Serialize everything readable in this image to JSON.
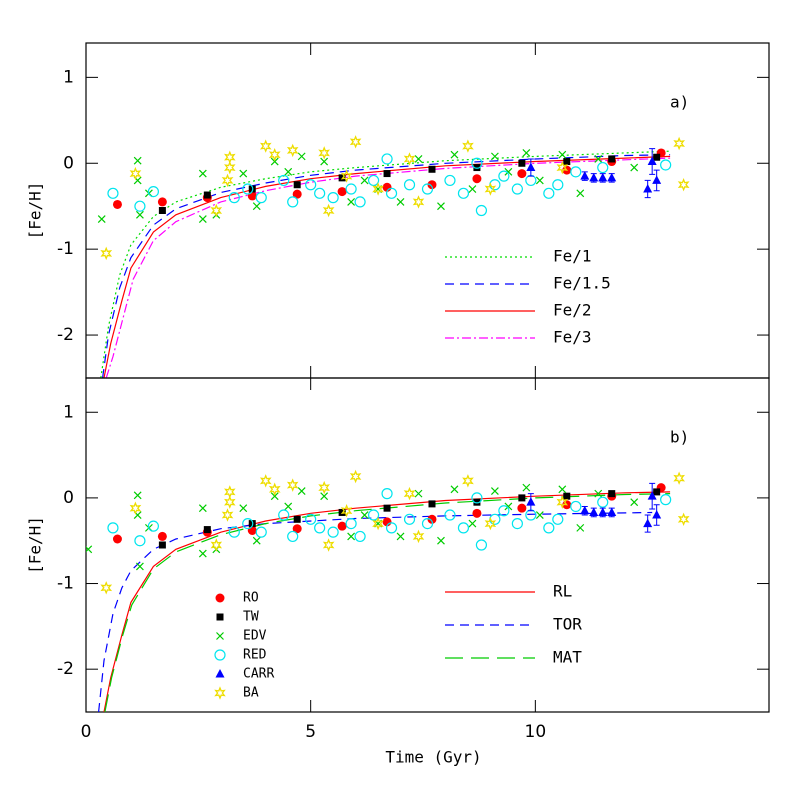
{
  "chart_data": [
    {
      "type": "scatter",
      "label": "a)",
      "ylabel": "[Fe/H]",
      "xlim": [
        0,
        15.2
      ],
      "ylim": [
        -2.5,
        1.4
      ],
      "xticks": [
        0,
        5,
        10
      ],
      "yticks": [
        1,
        0,
        -1,
        -2
      ],
      "series": [
        {
          "name": "Fe/1",
          "color": "#00dd00",
          "dash": "dotted",
          "x": [
            0.33,
            0.5,
            0.75,
            1,
            1.5,
            2,
            3,
            4,
            5,
            6,
            8,
            10,
            12,
            13
          ],
          "values": [
            -2.5,
            -1.9,
            -1.3,
            -0.95,
            -0.62,
            -0.45,
            -0.28,
            -0.18,
            -0.1,
            -0.05,
            0.03,
            0.08,
            0.12,
            0.14
          ]
        },
        {
          "name": "Fe/1.5",
          "color": "#0000ff",
          "dash": "dashed",
          "x": [
            0.37,
            0.5,
            0.75,
            1,
            1.5,
            2,
            3,
            4,
            5,
            6,
            8,
            10,
            12,
            13
          ],
          "values": [
            -2.5,
            -2.0,
            -1.45,
            -1.1,
            -0.72,
            -0.53,
            -0.34,
            -0.23,
            -0.14,
            -0.08,
            0,
            0.05,
            0.09,
            0.1
          ]
        },
        {
          "name": "Fe/2",
          "color": "#ff0000",
          "dash": "solid",
          "x": [
            0.4,
            0.55,
            0.8,
            1,
            1.5,
            2,
            3,
            4,
            5,
            6,
            8,
            10,
            12,
            13
          ],
          "values": [
            -2.5,
            -2.1,
            -1.6,
            -1.22,
            -0.8,
            -0.6,
            -0.4,
            -0.27,
            -0.18,
            -0.12,
            -0.03,
            0.02,
            0.06,
            0.08
          ]
        },
        {
          "name": "Fe/3",
          "color": "#ff00ff",
          "dash": "dashdot",
          "x": [
            0.45,
            0.6,
            0.85,
            1.05,
            1.5,
            2,
            3,
            4,
            5,
            6,
            8,
            10,
            12,
            13
          ],
          "values": [
            -2.5,
            -2.25,
            -1.75,
            -1.35,
            -0.9,
            -0.68,
            -0.45,
            -0.32,
            -0.22,
            -0.15,
            -0.06,
            0,
            0.04,
            0.06
          ]
        },
        {
          "color": "#ff0000",
          "marker": "dot",
          "x": [
            0.7,
            1.7,
            2.7,
            3.7,
            4.7,
            5.7,
            6.7,
            7.7,
            8.7,
            9.7,
            10.7,
            11.7,
            12.8
          ],
          "values": [
            -0.48,
            -0.45,
            -0.4,
            -0.38,
            -0.36,
            -0.33,
            -0.28,
            -0.25,
            -0.18,
            -0.12,
            -0.08,
            0.02,
            0.12
          ]
        },
        {
          "color": "#000000",
          "marker": "square",
          "x": [
            1.7,
            2.7,
            3.7,
            4.7,
            5.7,
            6.7,
            7.7,
            8.7,
            9.7,
            10.7,
            11.7,
            12.7
          ],
          "values": [
            -0.55,
            -0.37,
            -0.3,
            -0.25,
            -0.17,
            -0.12,
            -0.07,
            -0.05,
            0,
            0.02,
            0.05,
            0.07
          ]
        },
        {
          "color": "#00cc00",
          "marker": "cross",
          "x": [
            0.35,
            1.15,
            1.15,
            1.2,
            1.4,
            2.6,
            2.6,
            2.9,
            3.5,
            3.8,
            4.2,
            4.5,
            4.8,
            5.3,
            5.9,
            6.2,
            6.5,
            7,
            7.4,
            7.9,
            8.2,
            8.6,
            9.1,
            9.4,
            9.8,
            10.1,
            10.6,
            11,
            11.4,
            12.2
          ],
          "values": [
            -0.65,
            0.03,
            -0.2,
            -0.6,
            -0.35,
            -0.65,
            -0.12,
            -0.6,
            -0.12,
            -0.5,
            0.02,
            -0.1,
            0.08,
            0.02,
            -0.45,
            -0.2,
            -0.3,
            -0.45,
            0.05,
            -0.5,
            0.1,
            -0.3,
            0.08,
            -0.1,
            0.12,
            -0.2,
            0.1,
            -0.35,
            0.05,
            -0.05
          ]
        },
        {
          "color": "#00e5ee",
          "marker": "ring",
          "x": [
            0.6,
            1.2,
            1.5,
            3.3,
            3.6,
            3.9,
            4.4,
            4.6,
            5,
            5.2,
            5.5,
            5.9,
            6.1,
            6.4,
            6.7,
            6.8,
            7.2,
            7.6,
            8.1,
            8.4,
            8.7,
            8.8,
            9.1,
            9.3,
            9.6,
            9.9,
            10.3,
            10.5,
            10.9,
            11.5,
            12.9
          ],
          "values": [
            -0.35,
            -0.5,
            -0.33,
            -0.4,
            -0.3,
            -0.4,
            -0.2,
            -0.45,
            -0.25,
            -0.35,
            -0.4,
            -0.3,
            -0.45,
            -0.2,
            0.05,
            -0.35,
            -0.25,
            -0.3,
            -0.2,
            -0.35,
            0,
            -0.55,
            -0.25,
            -0.15,
            -0.3,
            -0.2,
            -0.35,
            -0.25,
            -0.1,
            -0.05,
            -0.02
          ]
        },
        {
          "color": "#0000ff",
          "marker": "triangle",
          "x": [
            9.9,
            11.1,
            11.3,
            11.5,
            11.7,
            12.5,
            12.7,
            12.6
          ],
          "values": [
            -0.05,
            -0.15,
            -0.17,
            -0.17,
            -0.17,
            -0.3,
            -0.2,
            0.02
          ],
          "errors": [
            0.1,
            0.05,
            0.05,
            0.05,
            0.05,
            0.1,
            0.12,
            0.15
          ]
        },
        {
          "color": "#eedd00",
          "marker": "star",
          "x": [
            0.45,
            1.1,
            2.9,
            3.15,
            3.2,
            3.2,
            4,
            4.2,
            4.6,
            5.3,
            5.8,
            6,
            5.4,
            6.5,
            7.2,
            7.4,
            8.5,
            9,
            10.6,
            13.3,
            13.2
          ],
          "values": [
            -1.05,
            -0.12,
            -0.55,
            -0.2,
            0.07,
            -0.05,
            0.2,
            0.1,
            0.15,
            0.12,
            -0.15,
            0.25,
            -0.55,
            -0.3,
            0.05,
            -0.45,
            0.2,
            -0.3,
            -0.05,
            -0.25,
            0.23
          ]
        }
      ]
    },
    {
      "type": "scatter",
      "label": "b)",
      "ylabel": "[Fe/H]",
      "xlabel": "Time (Gyr)",
      "xlim": [
        0,
        15.2
      ],
      "ylim": [
        -2.5,
        1.4
      ],
      "xticks": [
        0,
        5,
        10
      ],
      "yticks": [
        1,
        0,
        -1,
        -2
      ],
      "series": [
        {
          "name": "RL",
          "color": "#ff0000",
          "dash": "solid",
          "x": [
            0.4,
            0.55,
            0.8,
            1,
            1.5,
            2,
            3,
            4,
            5,
            6,
            8,
            10,
            12,
            13
          ],
          "values": [
            -2.5,
            -2.1,
            -1.6,
            -1.22,
            -0.8,
            -0.6,
            -0.4,
            -0.27,
            -0.18,
            -0.12,
            -0.03,
            0.02,
            0.06,
            0.07
          ]
        },
        {
          "name": "TOR",
          "color": "#0000ff",
          "dash": "dashed",
          "x": [
            0.28,
            0.4,
            0.6,
            0.8,
            1,
            1.5,
            2,
            3,
            4,
            6,
            8,
            10,
            12.6
          ],
          "values": [
            -2.5,
            -1.9,
            -1.35,
            -1.05,
            -0.85,
            -0.6,
            -0.48,
            -0.36,
            -0.3,
            -0.24,
            -0.21,
            -0.19,
            -0.17
          ]
        },
        {
          "name": "MAT",
          "color": "#00cc00",
          "dash": "longdash",
          "x": [
            0.42,
            0.57,
            0.82,
            1.02,
            1.5,
            2,
            3,
            4,
            5,
            6,
            8,
            10,
            12,
            13
          ],
          "values": [
            -2.5,
            -2.1,
            -1.6,
            -1.25,
            -0.83,
            -0.63,
            -0.43,
            -0.3,
            -0.21,
            -0.15,
            -0.06,
            0,
            0.04,
            0.05
          ]
        },
        {
          "name": "RO",
          "color": "#ff0000",
          "marker": "dot",
          "x": [
            0.7,
            1.7,
            2.7,
            3.7,
            4.7,
            5.7,
            6.7,
            7.7,
            8.7,
            9.7,
            10.7,
            11.7,
            12.8
          ],
          "values": [
            -0.48,
            -0.45,
            -0.4,
            -0.38,
            -0.36,
            -0.33,
            -0.28,
            -0.25,
            -0.18,
            -0.12,
            -0.08,
            0.02,
            0.12
          ]
        },
        {
          "name": "TW",
          "color": "#000000",
          "marker": "square",
          "x": [
            1.7,
            2.7,
            3.7,
            4.7,
            5.7,
            6.7,
            7.7,
            8.7,
            9.7,
            10.7,
            11.7,
            12.7
          ],
          "values": [
            -0.55,
            -0.37,
            -0.3,
            -0.25,
            -0.17,
            -0.12,
            -0.07,
            -0.05,
            0,
            0.02,
            0.05,
            0.07
          ]
        },
        {
          "name": "EDV",
          "color": "#00cc00",
          "marker": "cross",
          "x": [
            0.05,
            1.15,
            1.15,
            1.2,
            1.4,
            2.6,
            2.6,
            2.9,
            3.5,
            3.8,
            4.2,
            4.5,
            4.8,
            5.3,
            5.9,
            6.2,
            6.5,
            7,
            7.4,
            7.9,
            8.2,
            8.6,
            9.1,
            9.4,
            9.8,
            10.1,
            10.6,
            11,
            11.4,
            12.2
          ],
          "values": [
            -0.6,
            0.03,
            -0.2,
            -0.8,
            -0.35,
            -0.65,
            -0.12,
            -0.6,
            -0.12,
            -0.5,
            0.02,
            -0.1,
            0.08,
            0.02,
            -0.45,
            -0.2,
            -0.3,
            -0.45,
            0.05,
            -0.5,
            0.1,
            -0.3,
            0.08,
            -0.1,
            0.12,
            -0.2,
            0.1,
            -0.35,
            0.05,
            -0.05
          ]
        },
        {
          "name": "RED",
          "color": "#00e5ee",
          "marker": "ring",
          "x": [
            0.6,
            1.2,
            1.5,
            3.3,
            3.6,
            3.9,
            4.4,
            4.6,
            5,
            5.2,
            5.5,
            5.9,
            6.1,
            6.4,
            6.7,
            6.8,
            7.2,
            7.6,
            8.1,
            8.4,
            8.7,
            8.8,
            9.1,
            9.3,
            9.6,
            9.9,
            10.3,
            10.5,
            10.9,
            11.5,
            12.9
          ],
          "values": [
            -0.35,
            -0.5,
            -0.33,
            -0.4,
            -0.3,
            -0.4,
            -0.2,
            -0.45,
            -0.25,
            -0.35,
            -0.4,
            -0.3,
            -0.45,
            -0.2,
            0.05,
            -0.35,
            -0.25,
            -0.3,
            -0.2,
            -0.35,
            0,
            -0.55,
            -0.25,
            -0.15,
            -0.3,
            -0.2,
            -0.35,
            -0.25,
            -0.1,
            -0.05,
            -0.02
          ]
        },
        {
          "name": "CARR",
          "color": "#0000ff",
          "marker": "triangle",
          "x": [
            9.9,
            11.1,
            11.3,
            11.5,
            11.7,
            12.5,
            12.7,
            12.6
          ],
          "values": [
            -0.05,
            -0.15,
            -0.17,
            -0.17,
            -0.17,
            -0.3,
            -0.2,
            0.02
          ],
          "errors": [
            0.1,
            0.05,
            0.05,
            0.05,
            0.05,
            0.1,
            0.12,
            0.15
          ]
        },
        {
          "name": "BA",
          "color": "#eedd00",
          "marker": "star",
          "x": [
            0.45,
            1.1,
            2.9,
            3.15,
            3.2,
            3.2,
            4,
            4.2,
            4.6,
            5.3,
            5.8,
            6,
            5.4,
            6.5,
            7.2,
            7.4,
            8.5,
            9,
            10.6,
            13.3,
            13.2
          ],
          "values": [
            -1.05,
            -0.12,
            -0.55,
            -0.2,
            0.07,
            -0.05,
            0.2,
            0.1,
            0.15,
            0.12,
            -0.15,
            0.25,
            -0.55,
            -0.3,
            0.05,
            -0.45,
            0.2,
            -0.3,
            -0.05,
            -0.25,
            0.23
          ]
        }
      ]
    }
  ]
}
